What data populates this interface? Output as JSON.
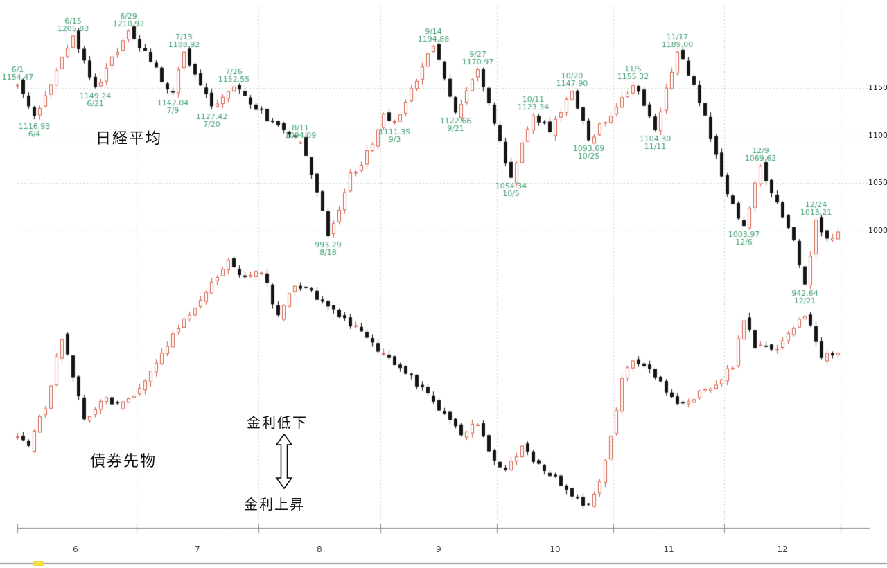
{
  "labels": {
    "nikkei": "日経平均",
    "bond": "債券先物",
    "rate_down": "金利低下",
    "rate_up": "金利上昇"
  },
  "colors": {
    "up": "#d95f4b",
    "down": "#141414",
    "annotation": "#3d9e70",
    "grid": "#c2d8c8",
    "axis": "#8a8a8a",
    "axis_text": "#444444",
    "background": "#ffffff",
    "marker_yellow": "#f2e13c"
  },
  "seed": 9,
  "x_axis": {
    "months": [
      "6",
      "7",
      "8",
      "9",
      "10",
      "11",
      "12"
    ],
    "month_day_counts": [
      22,
      22,
      22,
      21,
      21,
      20,
      21
    ],
    "n_candles": 149
  },
  "chart_data": [
    {
      "type": "candlestick",
      "name": "nikkei_225",
      "label": "日経平均",
      "ylim": [
        930,
        1220
      ],
      "volatility": 9,
      "axis_ticks": [
        {
          "label": "1150",
          "value": 1150
        },
        {
          "label": "1100",
          "value": 1100
        },
        {
          "label": "1050",
          "value": 1050
        },
        {
          "label": "1000",
          "value": 1000
        }
      ],
      "anchors": [
        {
          "i": 0,
          "v": 1154.47,
          "text": "1154.47",
          "date": "6/1",
          "pos": "above"
        },
        {
          "i": 3,
          "v": 1116.93,
          "text": "1116.93",
          "date": "6/4",
          "pos": "below"
        },
        {
          "i": 10,
          "v": 1205.83,
          "text": "1205.83",
          "date": "6/15",
          "pos": "above"
        },
        {
          "i": 14,
          "v": 1149.24,
          "text": "1149.24",
          "date": "6/21",
          "pos": "below"
        },
        {
          "i": 20,
          "v": 1210.92,
          "text": "1210.92",
          "date": "6/29",
          "pos": "above"
        },
        {
          "i": 28,
          "v": 1142.04,
          "text": "1142.04",
          "date": "7/9",
          "pos": "below"
        },
        {
          "i": 30,
          "v": 1188.92,
          "text": "1188.92",
          "date": "7/13",
          "pos": "above"
        },
        {
          "i": 35,
          "v": 1127.42,
          "text": "1127.42",
          "date": "7/20",
          "pos": "below"
        },
        {
          "i": 39,
          "v": 1152.55,
          "text": "1152.55",
          "date": "7/26",
          "pos": "above"
        },
        {
          "i": 45,
          "v": 1118
        },
        {
          "i": 48,
          "v": 1103
        },
        {
          "i": 51,
          "v": 1094.09,
          "text": "1094.09",
          "date": "8/11",
          "pos": "above"
        },
        {
          "i": 53,
          "v": 1058
        },
        {
          "i": 55,
          "v": 1018
        },
        {
          "i": 56,
          "v": 993.29,
          "text": "993.29",
          "date": "8/18",
          "pos": "below"
        },
        {
          "i": 60,
          "v": 1058
        },
        {
          "i": 64,
          "v": 1088
        },
        {
          "i": 66,
          "v": 1124
        },
        {
          "i": 68,
          "v": 1111.35,
          "text": "1111.35",
          "date": "9/3",
          "pos": "below"
        },
        {
          "i": 75,
          "v": 1194.88,
          "text": "1194.88",
          "date": "9/14",
          "pos": "above"
        },
        {
          "i": 79,
          "v": 1122.66,
          "text": "1122.66",
          "date": "9/21",
          "pos": "below"
        },
        {
          "i": 83,
          "v": 1170.97,
          "text": "1170.97",
          "date": "9/27",
          "pos": "above"
        },
        {
          "i": 89,
          "v": 1054.34,
          "text": "1054.34",
          "date": "10/5",
          "pos": "below"
        },
        {
          "i": 93,
          "v": 1123.34,
          "text": "1123.34",
          "date": "10/11",
          "pos": "above"
        },
        {
          "i": 96,
          "v": 1102
        },
        {
          "i": 100,
          "v": 1147.9,
          "text": "1147.90",
          "date": "10/20",
          "pos": "above"
        },
        {
          "i": 103,
          "v": 1093.69,
          "text": "1093.69",
          "date": "10/25",
          "pos": "below"
        },
        {
          "i": 111,
          "v": 1155.32,
          "text": "1155.32",
          "date": "11/5",
          "pos": "above"
        },
        {
          "i": 115,
          "v": 1104.3,
          "text": "1104.30",
          "date": "11/11",
          "pos": "below"
        },
        {
          "i": 119,
          "v": 1189.0,
          "text": "1189.00",
          "date": "11/17",
          "pos": "above"
        },
        {
          "i": 123,
          "v": 1138
        },
        {
          "i": 126,
          "v": 1078
        },
        {
          "i": 128,
          "v": 1040
        },
        {
          "i": 131,
          "v": 1003.97,
          "text": "1003.97",
          "date": "12/6",
          "pos": "below"
        },
        {
          "i": 134,
          "v": 1069.62,
          "text": "1069.62",
          "date": "12/9",
          "pos": "above"
        },
        {
          "i": 137,
          "v": 1028
        },
        {
          "i": 140,
          "v": 988
        },
        {
          "i": 142,
          "v": 942.64,
          "text": "942.64",
          "date": "12/21",
          "pos": "below"
        },
        {
          "i": 144,
          "v": 1013.21,
          "text": "1013.21",
          "date": "12/24",
          "pos": "above"
        },
        {
          "i": 146,
          "v": 988
        },
        {
          "i": 148,
          "v": 1000
        }
      ]
    },
    {
      "type": "candlestick",
      "name": "bond_futures",
      "label": "債券先物",
      "note": "no price axis shown; values are relative levels",
      "ylim": [
        0,
        100
      ],
      "volatility": 3.2,
      "anchors": [
        {
          "i": 0,
          "v": 28
        },
        {
          "i": 2,
          "v": 24
        },
        {
          "i": 5,
          "v": 40
        },
        {
          "i": 8,
          "v": 65
        },
        {
          "i": 10,
          "v": 50
        },
        {
          "i": 12,
          "v": 34
        },
        {
          "i": 15,
          "v": 42
        },
        {
          "i": 18,
          "v": 40
        },
        {
          "i": 21,
          "v": 44
        },
        {
          "i": 24,
          "v": 52
        },
        {
          "i": 27,
          "v": 63
        },
        {
          "i": 30,
          "v": 72
        },
        {
          "i": 33,
          "v": 80
        },
        {
          "i": 36,
          "v": 88
        },
        {
          "i": 38,
          "v": 95
        },
        {
          "i": 41,
          "v": 87
        },
        {
          "i": 44,
          "v": 90
        },
        {
          "i": 47,
          "v": 73
        },
        {
          "i": 50,
          "v": 85
        },
        {
          "i": 53,
          "v": 82
        },
        {
          "i": 56,
          "v": 78
        },
        {
          "i": 59,
          "v": 72
        },
        {
          "i": 62,
          "v": 67
        },
        {
          "i": 65,
          "v": 60
        },
        {
          "i": 68,
          "v": 55
        },
        {
          "i": 71,
          "v": 50
        },
        {
          "i": 74,
          "v": 44
        },
        {
          "i": 77,
          "v": 36
        },
        {
          "i": 80,
          "v": 28
        },
        {
          "i": 83,
          "v": 33
        },
        {
          "i": 85,
          "v": 22
        },
        {
          "i": 88,
          "v": 15
        },
        {
          "i": 91,
          "v": 25
        },
        {
          "i": 94,
          "v": 17
        },
        {
          "i": 97,
          "v": 12
        },
        {
          "i": 100,
          "v": 6
        },
        {
          "i": 103,
          "v": 2
        },
        {
          "i": 106,
          "v": 18
        },
        {
          "i": 109,
          "v": 50
        },
        {
          "i": 111,
          "v": 57
        },
        {
          "i": 114,
          "v": 52
        },
        {
          "i": 117,
          "v": 45
        },
        {
          "i": 120,
          "v": 40
        },
        {
          "i": 123,
          "v": 44
        },
        {
          "i": 126,
          "v": 48
        },
        {
          "i": 129,
          "v": 55
        },
        {
          "i": 131,
          "v": 72
        },
        {
          "i": 133,
          "v": 62
        },
        {
          "i": 136,
          "v": 60
        },
        {
          "i": 139,
          "v": 66
        },
        {
          "i": 142,
          "v": 74
        },
        {
          "i": 145,
          "v": 57
        },
        {
          "i": 148,
          "v": 60
        }
      ]
    }
  ]
}
